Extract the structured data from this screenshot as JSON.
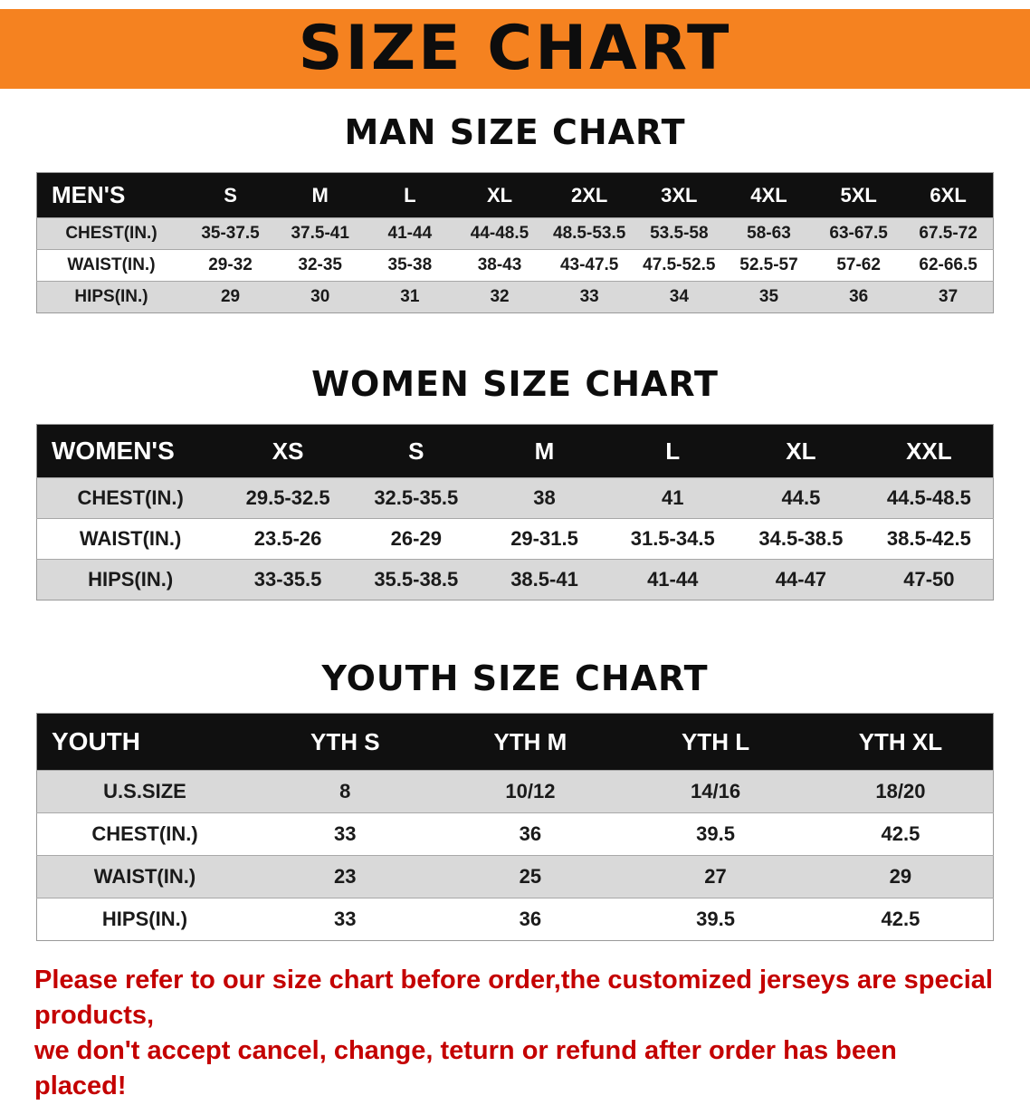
{
  "banner": {
    "title": "SIZE CHART"
  },
  "colors": {
    "banner_bg": "#F58220",
    "table_header_bg": "#101010",
    "row_alt_bg": "#D9D9D9",
    "footer_text": "#C40000"
  },
  "chart_data": [
    {
      "type": "table",
      "title": "MAN SIZE CHART",
      "header": [
        "MEN'S",
        "S",
        "M",
        "L",
        "XL",
        "2XL",
        "3XL",
        "4XL",
        "5XL",
        "6XL"
      ],
      "rows": [
        [
          "CHEST(IN.)",
          "35-37.5",
          "37.5-41",
          "41-44",
          "44-48.5",
          "48.5-53.5",
          "53.5-58",
          "58-63",
          "63-67.5",
          "67.5-72"
        ],
        [
          "WAIST(IN.)",
          "29-32",
          "32-35",
          "35-38",
          "38-43",
          "43-47.5",
          "47.5-52.5",
          "52.5-57",
          "57-62",
          "62-66.5"
        ],
        [
          "HIPS(IN.)",
          "29",
          "30",
          "31",
          "32",
          "33",
          "34",
          "35",
          "36",
          "37"
        ]
      ]
    },
    {
      "type": "table",
      "title": "WOMEN SIZE CHART",
      "header": [
        "WOMEN'S",
        "XS",
        "S",
        "M",
        "L",
        "XL",
        "XXL"
      ],
      "rows": [
        [
          "CHEST(IN.)",
          "29.5-32.5",
          "32.5-35.5",
          "38",
          "41",
          "44.5",
          "44.5-48.5"
        ],
        [
          "WAIST(IN.)",
          "23.5-26",
          "26-29",
          "29-31.5",
          "31.5-34.5",
          "34.5-38.5",
          "38.5-42.5"
        ],
        [
          "HIPS(IN.)",
          "33-35.5",
          "35.5-38.5",
          "38.5-41",
          "41-44",
          "44-47",
          "47-50"
        ]
      ]
    },
    {
      "type": "table",
      "title": "YOUTH SIZE CHART",
      "header": [
        "YOUTH",
        "YTH S",
        "YTH M",
        "YTH L",
        "YTH XL"
      ],
      "rows": [
        [
          "U.S.SIZE",
          "8",
          "10/12",
          "14/16",
          "18/20"
        ],
        [
          "CHEST(IN.)",
          "33",
          "36",
          "39.5",
          "42.5"
        ],
        [
          "WAIST(IN.)",
          "23",
          "25",
          "27",
          "29"
        ],
        [
          "HIPS(IN.)",
          "33",
          "36",
          "39.5",
          "42.5"
        ]
      ]
    }
  ],
  "footer": {
    "line1": "Please refer to our size chart before order,the customized jerseys are special products,",
    "line2": "we don't accept cancel, change, teturn or refund after order has been placed!"
  }
}
